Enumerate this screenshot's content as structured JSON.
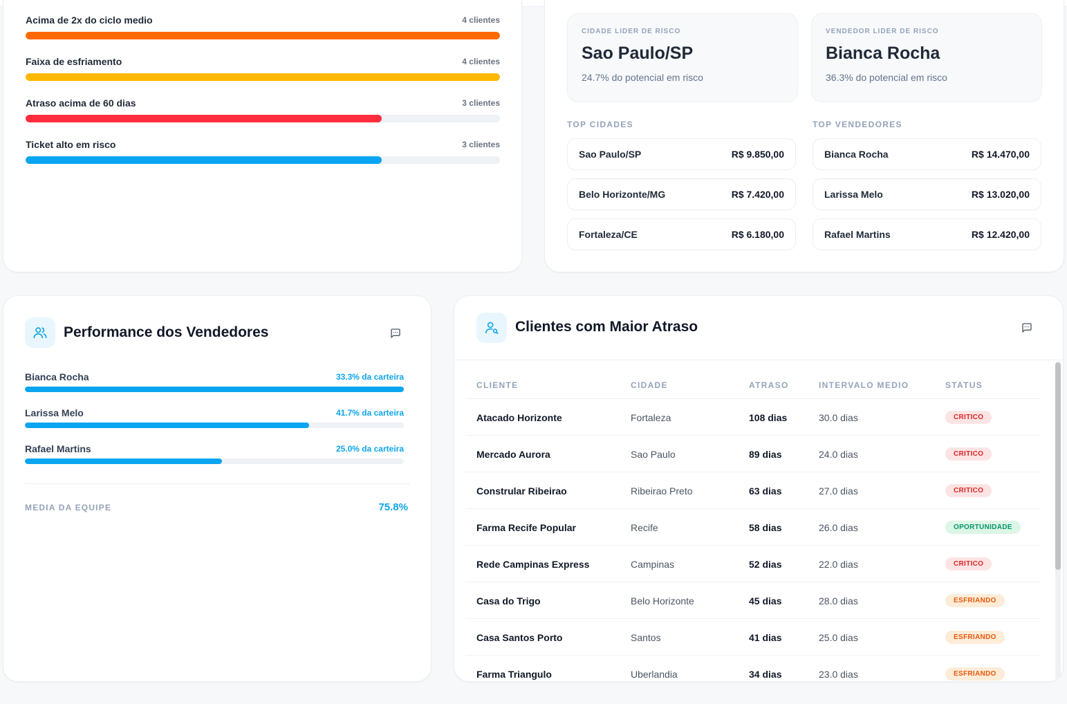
{
  "risk_bars": [
    {
      "label": "Acima de 2x do ciclo medio",
      "count": "4 clientes",
      "fill_fraction": 1.0,
      "color": "#ff6a00"
    },
    {
      "label": "Faixa de esfriamento",
      "count": "4 clientes",
      "fill_fraction": 1.0,
      "color": "#ffb800"
    },
    {
      "label": "Atraso acima de 60 dias",
      "count": "3 clientes",
      "fill_fraction": 0.75,
      "color": "#ff2d3d"
    },
    {
      "label": "Ticket alto em risco",
      "count": "3 clientes",
      "fill_fraction": 0.75,
      "color": "#0aa5f0"
    }
  ],
  "leaders": {
    "city": {
      "caption": "CIDADE LIDER DE RISCO",
      "name": "Sao Paulo/SP",
      "sub": "24.7% do potencial em risco"
    },
    "seller": {
      "caption": "VENDEDOR LIDER DE RISCO",
      "name": "Bianca Rocha",
      "sub": "36.3% do potencial em risco"
    }
  },
  "top_cities": {
    "caption": "TOP CIDADES",
    "items": [
      {
        "name": "Sao Paulo/SP",
        "value": "R$ 9.850,00"
      },
      {
        "name": "Belo Horizonte/MG",
        "value": "R$ 7.420,00"
      },
      {
        "name": "Fortaleza/CE",
        "value": "R$ 6.180,00"
      }
    ]
  },
  "top_sellers": {
    "caption": "TOP VENDEDORES",
    "items": [
      {
        "name": "Bianca Rocha",
        "value": "R$ 14.470,00"
      },
      {
        "name": "Larissa Melo",
        "value": "R$ 13.020,00"
      },
      {
        "name": "Rafael Martins",
        "value": "R$ 12.420,00"
      }
    ]
  },
  "performance": {
    "title": "Performance dos Vendedores",
    "sellers": [
      {
        "name": "Bianca Rocha",
        "pct_label": "33.3% da carteira",
        "fill_fraction": 1.0
      },
      {
        "name": "Larissa Melo",
        "pct_label": "41.7% da carteira",
        "fill_fraction": 0.75
      },
      {
        "name": "Rafael Martins",
        "pct_label": "25.0% da carteira",
        "fill_fraction": 0.52
      }
    ],
    "avg_label": "MEDIA DA EQUIPE",
    "avg_value": "75.8%",
    "bar_color": "#0aa5f0"
  },
  "delays": {
    "title": "Clientes com Maior Atraso",
    "headers": [
      "CLIENTE",
      "CIDADE",
      "ATRASO",
      "INTERVALO MEDIO",
      "STATUS"
    ],
    "rows": [
      {
        "client": "Atacado Horizonte",
        "city": "Fortaleza",
        "delay": "108 dias",
        "interval": "30.0 dias",
        "status": "CRITICO",
        "status_kind": "critico"
      },
      {
        "client": "Mercado Aurora",
        "city": "Sao Paulo",
        "delay": "89 dias",
        "interval": "24.0 dias",
        "status": "CRITICO",
        "status_kind": "critico"
      },
      {
        "client": "Constrular Ribeirao",
        "city": "Ribeirao Preto",
        "delay": "63 dias",
        "interval": "27.0 dias",
        "status": "CRITICO",
        "status_kind": "critico"
      },
      {
        "client": "Farma Recife Popular",
        "city": "Recife",
        "delay": "58 dias",
        "interval": "26.0 dias",
        "status": "OPORTUNIDADE",
        "status_kind": "oportunidade"
      },
      {
        "client": "Rede Campinas Express",
        "city": "Campinas",
        "delay": "52 dias",
        "interval": "22.0 dias",
        "status": "CRITICO",
        "status_kind": "critico"
      },
      {
        "client": "Casa do Trigo",
        "city": "Belo Horizonte",
        "delay": "45 dias",
        "interval": "28.0 dias",
        "status": "ESFRIANDO",
        "status_kind": "esfriando"
      },
      {
        "client": "Casa Santos Porto",
        "city": "Santos",
        "delay": "41 dias",
        "interval": "25.0 dias",
        "status": "ESFRIANDO",
        "status_kind": "esfriando"
      },
      {
        "client": "Farma Triangulo",
        "city": "Uberlandia",
        "delay": "34 dias",
        "interval": "23.0 dias",
        "status": "ESFRIANDO",
        "status_kind": "esfriando"
      }
    ]
  },
  "icons": {
    "performance_icon": "users-icon",
    "delays_icon": "user-search-icon",
    "comment_icon": "message-square-icon"
  }
}
